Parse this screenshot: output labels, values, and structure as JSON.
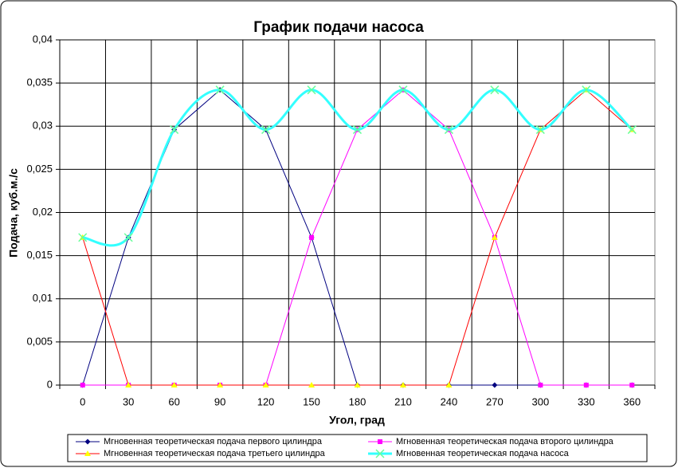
{
  "chart_data": {
    "type": "line",
    "title": "График подачи насоса",
    "x_label": "Угол, град",
    "y_label": "Подача, куб.м./с",
    "categories": [
      0,
      30,
      60,
      90,
      120,
      150,
      180,
      210,
      240,
      270,
      300,
      330,
      360
    ],
    "series": [
      {
        "name": "Мгновенная теоретическая подача первого цилиндра",
        "color": "#000080",
        "marker": "diamond",
        "marker_color": "#000080",
        "smooth": false,
        "values": [
          0,
          0.0171,
          0.0296,
          0.0342,
          0.0296,
          0.0171,
          0,
          0,
          0,
          0,
          0,
          0,
          0
        ]
      },
      {
        "name": "Мгновенная теоретическая подача второго цилиндра",
        "color": "#ff00ff",
        "marker": "square",
        "marker_color": "#ff00ff",
        "smooth": false,
        "values": [
          0,
          0,
          0,
          0,
          0,
          0.0171,
          0.0296,
          0.0342,
          0.0296,
          0.0171,
          0,
          0,
          0
        ]
      },
      {
        "name": "Мгновенная теоретическая подача третьего цилиндра",
        "color": "#ff0000",
        "marker": "triangle",
        "marker_color": "#ffff00",
        "smooth": false,
        "values": [
          0.0171,
          0,
          0,
          0,
          0,
          0,
          0,
          0,
          0,
          0.0171,
          0.0296,
          0.0342,
          0.0296
        ]
      },
      {
        "name": "Мгновенная теоретическая подача насоса",
        "color": "#33ffff",
        "marker": "x",
        "marker_color": "#66ff99",
        "smooth": true,
        "values": [
          0.0171,
          0.0171,
          0.0296,
          0.0342,
          0.0296,
          0.0342,
          0.0296,
          0.0342,
          0.0296,
          0.0342,
          0.0296,
          0.0342,
          0.0296
        ]
      }
    ],
    "ylim": [
      0,
      0.04
    ],
    "yticks": [
      0,
      {
        "value": 0.005,
        "label": "0,005"
      },
      {
        "value": 0.01,
        "label": "0,01"
      },
      {
        "value": 0.015,
        "label": "0,015"
      },
      {
        "value": 0.02,
        "label": "0,02"
      },
      {
        "value": 0.025,
        "label": "0,025"
      },
      {
        "value": 0.03,
        "label": "0,03"
      },
      {
        "value": 0.035,
        "label": "0,035"
      },
      {
        "value": 0.04,
        "label": "0,04"
      }
    ],
    "grid": true,
    "legend": "bottom"
  }
}
